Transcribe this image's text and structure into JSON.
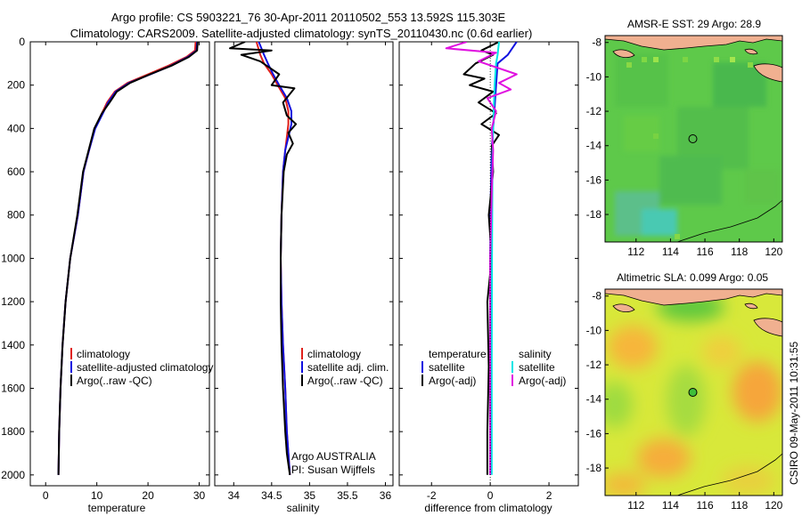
{
  "header": {
    "title_line1": "Argo profile: CS 5903221_76 30-Apr-2011 20110502_553 13.592S 115.303E",
    "title_line2": "Climatology: CARS2009. Satellite-adjusted climatology: synTS_20110430.nc (0.6d earlier)"
  },
  "colors": {
    "climatology": "#e0201b",
    "satellite": "#1010e0",
    "argo": "#000000",
    "salinity_satellite": "#00e5e5",
    "salinity_argo": "#e010e0",
    "land": "#f0b090"
  },
  "chart_data": [
    {
      "type": "line",
      "name": "temperature-profile",
      "xlabel": "temperature",
      "ylabel": "",
      "xlim": [
        -3,
        32
      ],
      "ylim": [
        2050,
        0
      ],
      "xticks": [
        0,
        10,
        20,
        30
      ],
      "yticks": [
        0,
        200,
        400,
        600,
        800,
        1000,
        1200,
        1400,
        1600,
        1800,
        2000
      ],
      "series": [
        {
          "name": "climatology",
          "color": "#e0201b",
          "x": [
            29.3,
            29.2,
            27.5,
            24,
            20,
            16,
            13.5,
            12,
            11,
            9.6,
            8.5,
            7.4,
            6.3,
            4.8,
            3.9,
            3.3,
            2.9,
            2.65,
            2.5
          ],
          "y": [
            0,
            40,
            70,
            110,
            150,
            190,
            230,
            280,
            330,
            400,
            500,
            600,
            800,
            1000,
            1200,
            1400,
            1600,
            1800,
            2000
          ]
        },
        {
          "name": "satellite-adjusted climatology",
          "color": "#1010e0",
          "x": [
            29.6,
            29.5,
            27.8,
            24.5,
            20.5,
            16.3,
            13.7,
            12.2,
            11.2,
            9.7,
            8.5,
            7.4,
            6.3,
            4.8,
            3.9,
            3.3,
            2.9,
            2.65,
            2.5
          ],
          "y": [
            0,
            40,
            70,
            110,
            150,
            190,
            230,
            280,
            330,
            400,
            500,
            600,
            800,
            1000,
            1200,
            1400,
            1600,
            1800,
            2000
          ]
        },
        {
          "name": "Argo(..raw -QC)",
          "color": "#000000",
          "x": [
            29.7,
            29.6,
            28,
            24.6,
            20.4,
            16.5,
            13.9,
            12.5,
            11,
            9.5,
            8.4,
            7.3,
            6.2,
            4.8,
            3.9,
            3.3,
            2.9,
            2.65,
            2.5
          ],
          "y": [
            0,
            40,
            70,
            110,
            150,
            190,
            230,
            280,
            330,
            400,
            500,
            600,
            800,
            1000,
            1200,
            1400,
            1600,
            1800,
            2000
          ]
        }
      ],
      "legend": [
        "climatology",
        "satellite-adjusted climatology",
        "Argo(..raw -QC)"
      ]
    },
    {
      "type": "line",
      "name": "salinity-profile",
      "xlabel": "salinity",
      "xlim": [
        33.75,
        36.1
      ],
      "ylim": [
        2050,
        0
      ],
      "xticks": [
        34,
        34.5,
        35,
        35.5,
        36
      ],
      "series": [
        {
          "name": "climatology",
          "color": "#e0201b",
          "x": [
            34.3,
            34.35,
            34.4,
            34.5,
            34.58,
            34.68,
            34.72,
            34.72,
            34.7,
            34.68,
            34.65,
            34.63,
            34.62,
            34.63,
            34.65,
            34.68,
            34.7,
            34.72,
            34.74
          ],
          "y": [
            0,
            60,
            100,
            150,
            200,
            260,
            320,
            380,
            440,
            500,
            600,
            800,
            1000,
            1200,
            1400,
            1600,
            1800,
            1900,
            2000
          ]
        },
        {
          "name": "satellite adj. clim.",
          "color": "#1010e0",
          "x": [
            34.33,
            34.4,
            34.45,
            34.52,
            34.6,
            34.7,
            34.76,
            34.76,
            34.72,
            34.68,
            34.65,
            34.63,
            34.62,
            34.63,
            34.65,
            34.68,
            34.7,
            34.72,
            34.74
          ],
          "y": [
            0,
            60,
            100,
            150,
            200,
            260,
            320,
            380,
            440,
            500,
            600,
            800,
            1000,
            1200,
            1400,
            1600,
            1800,
            1900,
            2000
          ]
        },
        {
          "name": "Argo(..raw -QC)",
          "color": "#000000",
          "x": [
            34.15,
            33.95,
            34.5,
            34.1,
            34.35,
            34.6,
            34.5,
            34.8,
            34.65,
            34.7,
            34.82,
            34.72,
            34.78,
            34.7,
            34.66,
            34.63,
            34.62,
            34.62,
            34.63,
            34.65,
            34.68,
            34.7,
            34.72,
            34.74
          ],
          "y": [
            0,
            30,
            40,
            60,
            90,
            150,
            200,
            215,
            280,
            340,
            380,
            420,
            470,
            520,
            600,
            800,
            1000,
            1200,
            1400,
            1600,
            1800,
            1900,
            1950,
            2000
          ]
        }
      ],
      "legend": [
        "climatology",
        "satellite adj. clim.",
        "Argo(..raw -QC)"
      ],
      "annotation_line1": "Argo AUSTRALIA",
      "annotation_line2": "PI: Susan Wijffels"
    },
    {
      "type": "line",
      "name": "difference-profile",
      "xlabel": "difference from climatology",
      "xlim": [
        -3.1,
        3
      ],
      "ylim": [
        2050,
        0
      ],
      "xticks": [
        -2,
        0,
        2
      ],
      "series": [
        {
          "name": "temperature satellite",
          "color": "#1010e0",
          "x": [
            0.9,
            0.6,
            0.25,
            0.2,
            0.15,
            0.1,
            0.05,
            0.02,
            0,
            0,
            0
          ],
          "y": [
            0,
            60,
            100,
            200,
            300,
            400,
            500,
            700,
            1000,
            1500,
            2000
          ]
        },
        {
          "name": "temperature Argo(-adj)",
          "color": "#000000",
          "x": [
            0.3,
            -0.3,
            0.1,
            -0.5,
            -0.9,
            -0.2,
            -0.7,
            0.1,
            -0.4,
            0.2,
            -0.3,
            0.3,
            0.05,
            0.1,
            -0.05,
            0.05,
            -0.1,
            -0.05,
            -0.1,
            -0.1
          ],
          "y": [
            0,
            40,
            60,
            100,
            150,
            170,
            200,
            230,
            280,
            330,
            380,
            430,
            480,
            600,
            800,
            1000,
            1200,
            1500,
            1800,
            2000
          ]
        },
        {
          "name": "salinity satellite",
          "color": "#00e5e5",
          "x": [
            0.3,
            0.25,
            0.2,
            0.15,
            0.12,
            0.1,
            0.08,
            0.07,
            0.06,
            0.05,
            0.05
          ],
          "y": [
            0,
            60,
            100,
            200,
            300,
            400,
            500,
            700,
            1000,
            1500,
            2000
          ]
        },
        {
          "name": "salinity Argo(-adj)",
          "color": "#e010e0",
          "x": [
            -0.8,
            -1.5,
            0.2,
            -0.4,
            0.9,
            0.3,
            0.7,
            -0.1,
            0.2,
            0.05,
            0.1,
            0.05,
            0,
            0,
            0
          ],
          "y": [
            0,
            30,
            50,
            90,
            150,
            190,
            220,
            260,
            320,
            400,
            500,
            700,
            1000,
            1500,
            2000
          ]
        }
      ],
      "legend_temperature_title": "temperature",
      "legend_salinity_title": "salinity",
      "legend": [
        "satellite",
        "Argo(-adj)",
        "satellite",
        "Argo(-adj)"
      ]
    },
    {
      "type": "heatmap",
      "name": "amsr-sst-map",
      "title": "AMSR-E SST: 29 Argo: 28.9",
      "xlim": [
        110.2,
        120.5
      ],
      "ylim": [
        -19.6,
        -7.6
      ],
      "xticks": [
        112,
        114,
        116,
        118,
        120
      ],
      "yticks": [
        -8,
        -10,
        -12,
        -14,
        -16,
        -18
      ],
      "argo_position": {
        "lon": 115.3,
        "lat": -13.6
      }
    },
    {
      "type": "heatmap",
      "name": "altimetric-sla-map",
      "title": "Altimetric SLA: 0.099 Argo: 0.05",
      "xlim": [
        110.2,
        120.5
      ],
      "ylim": [
        -19.6,
        -7.6
      ],
      "xticks": [
        112,
        114,
        116,
        118,
        120
      ],
      "yticks": [
        -8,
        -10,
        -12,
        -14,
        -16,
        -18
      ],
      "argo_position": {
        "lon": 115.3,
        "lat": -13.6
      }
    }
  ],
  "footer": {
    "stamp": "CSIRO 09-May-2011 10:31:55"
  }
}
